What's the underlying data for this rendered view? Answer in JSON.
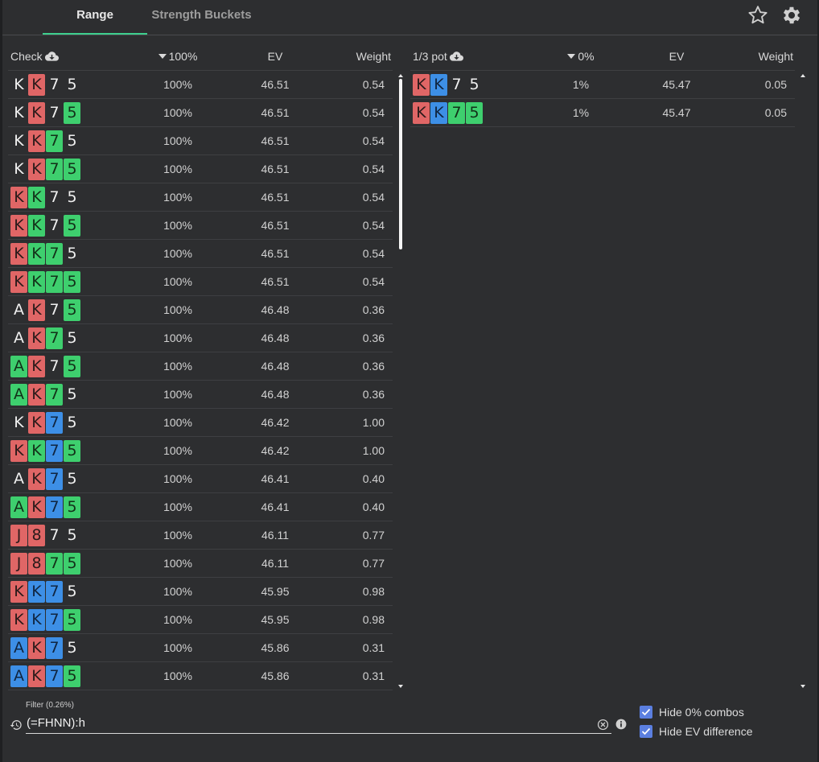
{
  "tabs": [
    {
      "label": "Range",
      "active": true
    },
    {
      "label": "Strength Buckets",
      "active": false
    }
  ],
  "icons": {
    "star": "star-icon",
    "settings": "gear-icon",
    "cloud": "cloud-download-icon",
    "history": "history-icon",
    "clear": "clear-circle-icon",
    "info": "info-icon"
  },
  "colors": {
    "accent": "#3ecf8e",
    "spade": "#1c1c1d",
    "heart": "#e06666",
    "club": "#3ecf6e",
    "diamond": "#3d8fe6",
    "checkbox": "#5b7fe0"
  },
  "left_table": {
    "action": "Check",
    "freq_header": "100%",
    "ev_header": "EV",
    "weight_header": "Weight",
    "rows": [
      {
        "cards": [
          [
            "K",
            "s"
          ],
          [
            "K",
            "h"
          ],
          [
            "7",
            "s"
          ],
          [
            "5",
            "s"
          ]
        ],
        "freq": "100%",
        "ev": "46.51",
        "weight": "0.54"
      },
      {
        "cards": [
          [
            "K",
            "s"
          ],
          [
            "K",
            "h"
          ],
          [
            "7",
            "s"
          ],
          [
            "5",
            "c"
          ]
        ],
        "freq": "100%",
        "ev": "46.51",
        "weight": "0.54"
      },
      {
        "cards": [
          [
            "K",
            "s"
          ],
          [
            "K",
            "h"
          ],
          [
            "7",
            "c"
          ],
          [
            "5",
            "s"
          ]
        ],
        "freq": "100%",
        "ev": "46.51",
        "weight": "0.54"
      },
      {
        "cards": [
          [
            "K",
            "s"
          ],
          [
            "K",
            "h"
          ],
          [
            "7",
            "c"
          ],
          [
            "5",
            "c"
          ]
        ],
        "freq": "100%",
        "ev": "46.51",
        "weight": "0.54"
      },
      {
        "cards": [
          [
            "K",
            "h"
          ],
          [
            "K",
            "c"
          ],
          [
            "7",
            "s"
          ],
          [
            "5",
            "s"
          ]
        ],
        "freq": "100%",
        "ev": "46.51",
        "weight": "0.54"
      },
      {
        "cards": [
          [
            "K",
            "h"
          ],
          [
            "K",
            "c"
          ],
          [
            "7",
            "s"
          ],
          [
            "5",
            "c"
          ]
        ],
        "freq": "100%",
        "ev": "46.51",
        "weight": "0.54"
      },
      {
        "cards": [
          [
            "K",
            "h"
          ],
          [
            "K",
            "c"
          ],
          [
            "7",
            "c"
          ],
          [
            "5",
            "s"
          ]
        ],
        "freq": "100%",
        "ev": "46.51",
        "weight": "0.54"
      },
      {
        "cards": [
          [
            "K",
            "h"
          ],
          [
            "K",
            "c"
          ],
          [
            "7",
            "c"
          ],
          [
            "5",
            "c"
          ]
        ],
        "freq": "100%",
        "ev": "46.51",
        "weight": "0.54"
      },
      {
        "cards": [
          [
            "A",
            "s"
          ],
          [
            "K",
            "h"
          ],
          [
            "7",
            "s"
          ],
          [
            "5",
            "c"
          ]
        ],
        "freq": "100%",
        "ev": "46.48",
        "weight": "0.36"
      },
      {
        "cards": [
          [
            "A",
            "s"
          ],
          [
            "K",
            "h"
          ],
          [
            "7",
            "c"
          ],
          [
            "5",
            "s"
          ]
        ],
        "freq": "100%",
        "ev": "46.48",
        "weight": "0.36"
      },
      {
        "cards": [
          [
            "A",
            "c"
          ],
          [
            "K",
            "h"
          ],
          [
            "7",
            "s"
          ],
          [
            "5",
            "c"
          ]
        ],
        "freq": "100%",
        "ev": "46.48",
        "weight": "0.36"
      },
      {
        "cards": [
          [
            "A",
            "c"
          ],
          [
            "K",
            "h"
          ],
          [
            "7",
            "c"
          ],
          [
            "5",
            "s"
          ]
        ],
        "freq": "100%",
        "ev": "46.48",
        "weight": "0.36"
      },
      {
        "cards": [
          [
            "K",
            "s"
          ],
          [
            "K",
            "h"
          ],
          [
            "7",
            "d"
          ],
          [
            "5",
            "s"
          ]
        ],
        "freq": "100%",
        "ev": "46.42",
        "weight": "1.00"
      },
      {
        "cards": [
          [
            "K",
            "h"
          ],
          [
            "K",
            "c"
          ],
          [
            "7",
            "d"
          ],
          [
            "5",
            "c"
          ]
        ],
        "freq": "100%",
        "ev": "46.42",
        "weight": "1.00"
      },
      {
        "cards": [
          [
            "A",
            "s"
          ],
          [
            "K",
            "h"
          ],
          [
            "7",
            "d"
          ],
          [
            "5",
            "s"
          ]
        ],
        "freq": "100%",
        "ev": "46.41",
        "weight": "0.40"
      },
      {
        "cards": [
          [
            "A",
            "c"
          ],
          [
            "K",
            "h"
          ],
          [
            "7",
            "d"
          ],
          [
            "5",
            "c"
          ]
        ],
        "freq": "100%",
        "ev": "46.41",
        "weight": "0.40"
      },
      {
        "cards": [
          [
            "J",
            "h"
          ],
          [
            "8",
            "h"
          ],
          [
            "7",
            "s"
          ],
          [
            "5",
            "s"
          ]
        ],
        "freq": "100%",
        "ev": "46.11",
        "weight": "0.77"
      },
      {
        "cards": [
          [
            "J",
            "h"
          ],
          [
            "8",
            "h"
          ],
          [
            "7",
            "c"
          ],
          [
            "5",
            "c"
          ]
        ],
        "freq": "100%",
        "ev": "46.11",
        "weight": "0.77"
      },
      {
        "cards": [
          [
            "K",
            "h"
          ],
          [
            "K",
            "d"
          ],
          [
            "7",
            "d"
          ],
          [
            "5",
            "s"
          ]
        ],
        "freq": "100%",
        "ev": "45.95",
        "weight": "0.98"
      },
      {
        "cards": [
          [
            "K",
            "h"
          ],
          [
            "K",
            "d"
          ],
          [
            "7",
            "d"
          ],
          [
            "5",
            "c"
          ]
        ],
        "freq": "100%",
        "ev": "45.95",
        "weight": "0.98"
      },
      {
        "cards": [
          [
            "A",
            "d"
          ],
          [
            "K",
            "h"
          ],
          [
            "7",
            "d"
          ],
          [
            "5",
            "s"
          ]
        ],
        "freq": "100%",
        "ev": "45.86",
        "weight": "0.31"
      },
      {
        "cards": [
          [
            "A",
            "d"
          ],
          [
            "K",
            "h"
          ],
          [
            "7",
            "d"
          ],
          [
            "5",
            "c"
          ]
        ],
        "freq": "100%",
        "ev": "45.86",
        "weight": "0.31"
      }
    ]
  },
  "right_table": {
    "action": "1/3 pot",
    "freq_header": "0%",
    "ev_header": "EV",
    "weight_header": "Weight",
    "rows": [
      {
        "cards": [
          [
            "K",
            "h"
          ],
          [
            "K",
            "d"
          ],
          [
            "7",
            "s"
          ],
          [
            "5",
            "s"
          ]
        ],
        "freq": "1%",
        "ev": "45.47",
        "weight": "0.05"
      },
      {
        "cards": [
          [
            "K",
            "h"
          ],
          [
            "K",
            "d"
          ],
          [
            "7",
            "c"
          ],
          [
            "5",
            "c"
          ]
        ],
        "freq": "1%",
        "ev": "45.47",
        "weight": "0.05"
      }
    ]
  },
  "filter": {
    "label": "Filter (0.26%)",
    "value": "(=FHNN):h"
  },
  "options": [
    {
      "label": "Hide 0% combos",
      "checked": true
    },
    {
      "label": "Hide EV difference",
      "checked": true
    }
  ]
}
